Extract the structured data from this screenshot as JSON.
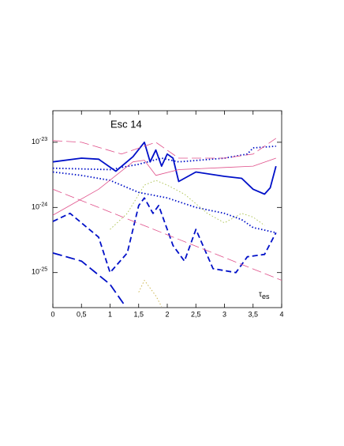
{
  "chart_data": {
    "type": "line",
    "title": "Esc 14",
    "xlabel": "τ",
    "xlabel_sub": "es",
    "yscale": "log",
    "xlim": [
      0,
      4
    ],
    "ylim": [
      2.9e-26,
      3.05e-23
    ],
    "xticks": [
      0,
      {
        "value": 0.5,
        "label": "0,5"
      },
      1,
      {
        "value": 1.5,
        "label": "1,5"
      },
      2,
      {
        "value": 2.5,
        "label": "2,5"
      },
      3,
      {
        "value": 3.5,
        "label": "3,5"
      },
      4
    ],
    "yticks": [
      {
        "value": 1e-23,
        "label": "10",
        "sup": "-23"
      },
      {
        "value": 1e-24,
        "label": "10",
        "sup": "-24"
      },
      {
        "value": 1e-25,
        "label": "10",
        "sup": "-25"
      }
    ],
    "series": [
      {
        "color": "#0010c8",
        "dash": "solid",
        "width": 1.8,
        "x": [
          0,
          0.5,
          0.8,
          1.1,
          1.4,
          1.6,
          1.7,
          1.8,
          1.9,
          2,
          2.1,
          2.2,
          2.5,
          3,
          3.3,
          3.5,
          3.7,
          3.8,
          3.9
        ],
        "values": [
          5e-24,
          5.7e-24,
          5.5e-24,
          3.6e-24,
          6e-24,
          1e-23,
          5e-24,
          7.6e-24,
          4.3e-24,
          6.6e-24,
          5.7e-24,
          2.5e-24,
          3.5e-24,
          3e-24,
          2.8e-24,
          1.9e-24,
          1.6e-24,
          2e-24,
          4.3e-24
        ]
      },
      {
        "color": "#0010c8",
        "dash": "dotted",
        "width": 1.8,
        "x": [
          0,
          1,
          1.5,
          1.9,
          2.2,
          3,
          3.4,
          3.5,
          3.9
        ],
        "values": [
          4e-24,
          3.8e-24,
          4.6e-24,
          5.7e-24,
          5e-24,
          5.7e-24,
          6.6e-24,
          8.2e-24,
          8.7e-24
        ]
      },
      {
        "color": "#0010c8",
        "dash": "dotted",
        "width": 1.8,
        "x": [
          0,
          0.5,
          1,
          1.5,
          2,
          2.5,
          3,
          3.3,
          3.5,
          3.9
        ],
        "values": [
          3.5e-24,
          3.1e-24,
          2.6e-24,
          1.7e-24,
          1.4e-24,
          1e-24,
          8.1e-25,
          6.5e-25,
          4.9e-25,
          4.1e-25
        ]
      },
      {
        "color": "#0010c8",
        "dash": "dashed",
        "width": 1.8,
        "x": [
          0,
          0.3,
          0.8,
          1,
          1.3,
          1.5,
          1.6,
          1.75,
          1.85,
          2.1,
          2.3,
          2.5,
          2.8,
          3.2,
          3.4,
          3.7,
          3.9
        ],
        "values": [
          6.1e-25,
          8.1e-25,
          3.5e-25,
          1e-25,
          2e-25,
          1.07e-24,
          1.4e-24,
          8.1e-25,
          1.07e-24,
          2.6e-25,
          1.5e-25,
          4.6e-25,
          1.15e-25,
          1e-25,
          1.75e-25,
          1.9e-25,
          4.1e-25
        ]
      },
      {
        "color": "#0010c8",
        "dash": "longdash",
        "width": 1.8,
        "x": [
          0,
          0.5,
          1,
          1.25
        ],
        "values": [
          2e-25,
          1.5e-25,
          6.6e-26,
          3.2e-26
        ]
      },
      {
        "color": "#e0508a",
        "dash": "longdash",
        "width": 0.8,
        "x": [
          0,
          0.5,
          1.2,
          1.6,
          1.8,
          2.2,
          3,
          3.5,
          3.9
        ],
        "values": [
          1.06e-23,
          1e-23,
          6.6e-24,
          8.7e-24,
          1e-23,
          5.7e-24,
          5.7e-24,
          6.6e-24,
          1.15e-23
        ]
      },
      {
        "color": "#e0508a",
        "dash": "solid",
        "width": 0.8,
        "x": [
          0,
          0.8,
          1.4,
          1.6,
          1.8,
          2.2,
          3,
          3.5,
          3.9
        ],
        "values": [
          7.6e-25,
          1.9e-24,
          5e-24,
          5.3e-24,
          3.1e-24,
          3.8e-24,
          4.1e-24,
          4.3e-24,
          5.7e-24
        ]
      },
      {
        "color": "#e0508a",
        "dash": "longdash",
        "width": 0.8,
        "x": [
          0,
          4
        ],
        "values": [
          1.9e-24,
          7.6e-26
        ]
      },
      {
        "color": "#a8c048",
        "dash": "dotted",
        "width": 0.9,
        "x": [
          1,
          1.3,
          1.6,
          1.8,
          2,
          2.3,
          2.7,
          3,
          3.3,
          3.5,
          3.7
        ],
        "values": [
          4.6e-25,
          8.1e-25,
          2.2e-24,
          2.6e-24,
          2.2e-24,
          1.6e-24,
          8.1e-25,
          5.8e-25,
          8.1e-25,
          7.1e-25,
          5.3e-25
        ]
      },
      {
        "color": "#c8b040",
        "dash": "dotted",
        "width": 0.9,
        "x": [
          1.5,
          1.6,
          1.8,
          1.9
        ],
        "values": [
          5e-26,
          7.6e-26,
          4.4e-26,
          3e-26
        ]
      }
    ]
  }
}
